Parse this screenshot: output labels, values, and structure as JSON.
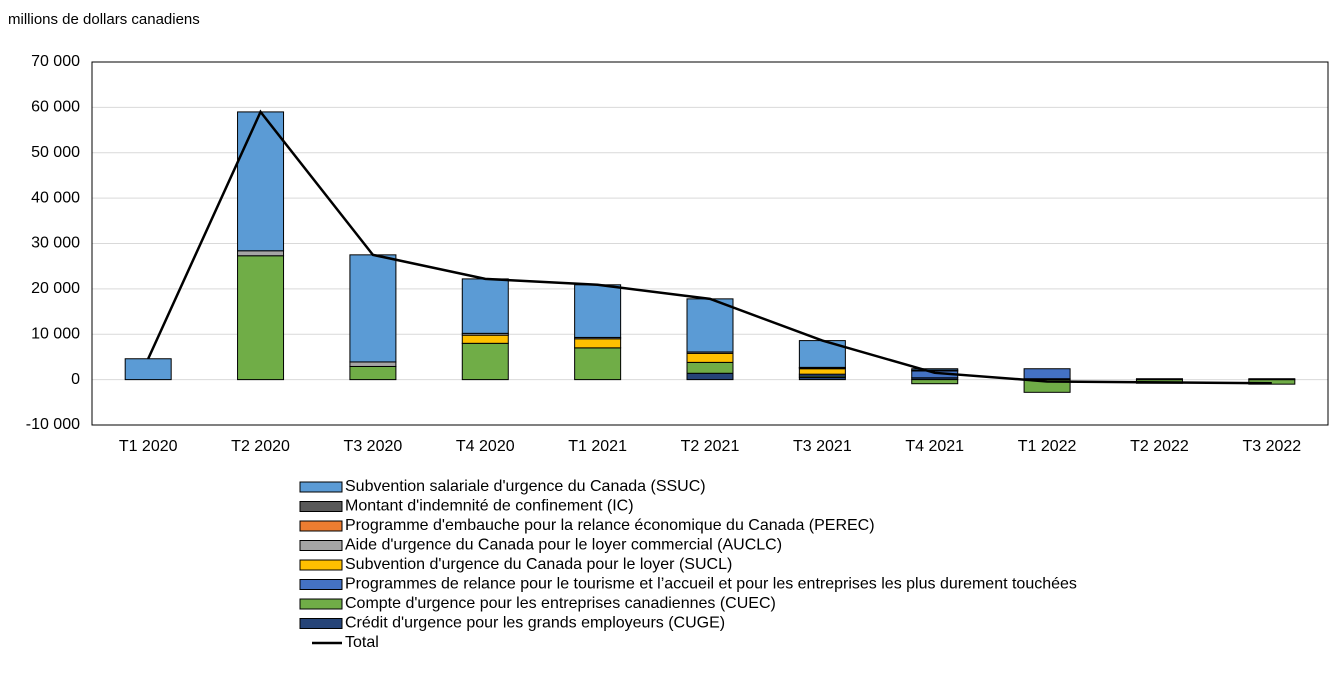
{
  "chart_data": {
    "type": "stacked-bar-line",
    "y_axis_label": "millions de dollars canadiens",
    "categories": [
      "T1 2020",
      "T2 2020",
      "T3 2020",
      "T4 2020",
      "T1 2021",
      "T2 2021",
      "T3 2021",
      "T4 2021",
      "T1 2022",
      "T2 2022",
      "T3 2022"
    ],
    "ylim": [
      -10000,
      70000
    ],
    "yticks": [
      {
        "value": -10000,
        "label": "-10 000"
      },
      0,
      {
        "value": 10000,
        "label": "10 000"
      },
      {
        "value": 20000,
        "label": "20 000"
      },
      {
        "value": 30000,
        "label": "30 000"
      },
      {
        "value": 40000,
        "label": "40 000"
      },
      {
        "value": 50000,
        "label": "50 000"
      },
      {
        "value": 60000,
        "label": "60 000"
      },
      {
        "value": 70000,
        "label": "70 000"
      }
    ],
    "grid": true,
    "series": [
      {
        "name": "Subvention salariale d'urgence du Canada (SSUC)",
        "color": "#5b9bd5",
        "values": [
          4600,
          30600,
          23600,
          12000,
          11600,
          11700,
          5900,
          300,
          0,
          0,
          0
        ]
      },
      {
        "name": "Montant d'indemnité de confinement (IC)",
        "color": "#595959",
        "values": [
          0,
          0,
          0,
          0,
          0,
          0,
          0,
          0,
          0,
          0,
          0
        ]
      },
      {
        "name": "Programme d'embauche pour la relance économique du Canada (PEREC)",
        "color": "#ed7d31",
        "values": [
          0,
          0,
          0,
          0,
          0,
          0,
          100,
          0,
          0,
          0,
          0
        ]
      },
      {
        "name": "Aide d'urgence du Canada pour le loyer commercial (AUCLC)",
        "color": "#a5a5a5",
        "values": [
          0,
          1100,
          1000,
          400,
          300,
          300,
          200,
          0,
          0,
          0,
          0
        ]
      },
      {
        "name": "Subvention d'urgence du Canada pour le loyer (SUCL)",
        "color": "#ffc000",
        "values": [
          0,
          0,
          0,
          1800,
          2000,
          2000,
          1200,
          200,
          0,
          0,
          0
        ]
      },
      {
        "name": "Programmes de relance pour le tourisme et l’accueil et pour les entreprises les plus durement touchées",
        "color": "#4472c4",
        "values": [
          0,
          0,
          0,
          0,
          0,
          0,
          400,
          1500,
          2200,
          200,
          200
        ]
      },
      {
        "name": "Compte d'urgence pour les entreprises canadiennes (CUEC)",
        "color": "#70ad47",
        "values": [
          0,
          27300,
          2900,
          8000,
          7000,
          2400,
          300,
          -900,
          -2800,
          -800,
          -1000
        ]
      },
      {
        "name": "Crédit d'urgence pour les grands employeurs (CUGE)",
        "color": "#264478",
        "values": [
          0,
          0,
          0,
          0,
          0,
          1400,
          500,
          400,
          200,
          0,
          0
        ]
      }
    ],
    "line": {
      "name": "Total",
      "color": "#000000",
      "values": [
        4600,
        59000,
        27500,
        22200,
        20900,
        17800,
        8600,
        1500,
        -400,
        -600,
        -800
      ]
    }
  }
}
